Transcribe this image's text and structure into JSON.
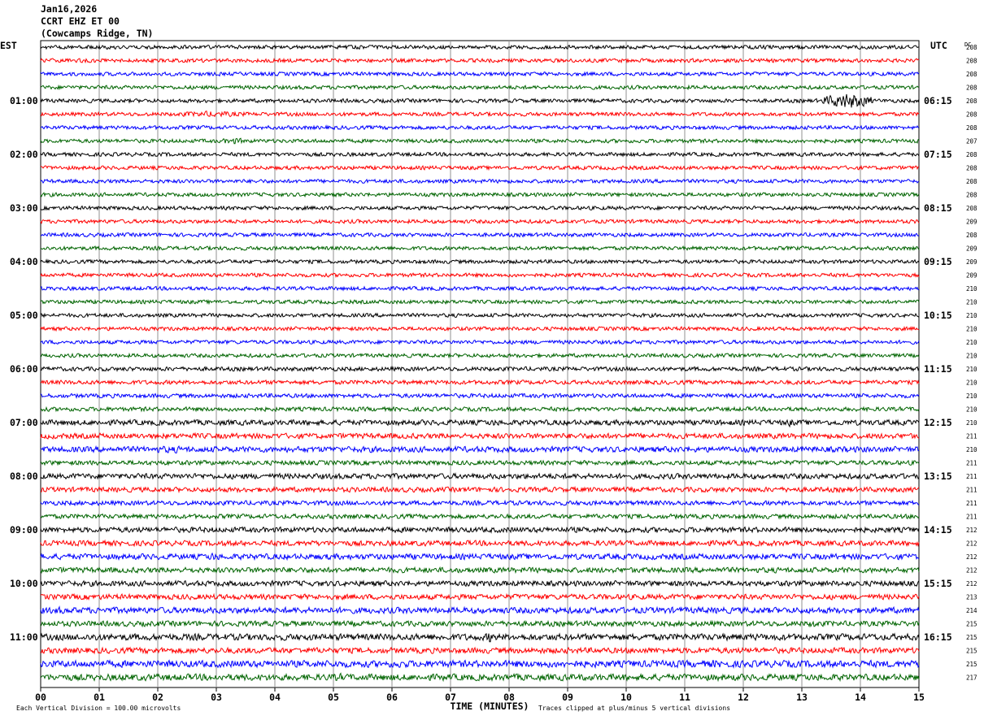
{
  "header": {
    "date": "Jan16,2026",
    "channel": "CCRT EHZ ET 00",
    "location": "(Cowcamps Ridge, TN)"
  },
  "footer": {
    "scale_note": "Each Vertical Division =  100.00 microvolts",
    "clip_note": "Traces clipped at plus/minus 5 vertical divisions"
  },
  "chart_data": {
    "type": "line",
    "title": "",
    "left_axis_label": "EST",
    "right_axis_label": "UTC",
    "dc_label": "DC",
    "xlabel": "TIME (MINUTES)",
    "xlim": [
      0,
      15
    ],
    "x_ticks": [
      "00",
      "01",
      "02",
      "03",
      "04",
      "05",
      "06",
      "07",
      "08",
      "09",
      "10",
      "11",
      "12",
      "13",
      "14",
      "15"
    ],
    "trace_colors": [
      "#000000",
      "#ff0000",
      "#0000ff",
      "#006400"
    ],
    "grid": true,
    "rows": [
      {
        "est": "",
        "utc": "",
        "dc": "208",
        "amp": 1.0
      },
      {
        "est": "",
        "utc": "",
        "dc": "208",
        "amp": 1.0
      },
      {
        "est": "",
        "utc": "",
        "dc": "208",
        "amp": 1.0
      },
      {
        "est": "",
        "utc": "",
        "dc": "208",
        "amp": 1.0
      },
      {
        "est": "01:00",
        "utc": "06:15",
        "dc": "208",
        "amp": 1.0,
        "events": [
          {
            "start": 13.35,
            "end": 14.2,
            "amp": 4.2
          }
        ]
      },
      {
        "est": "",
        "utc": "",
        "dc": "208",
        "amp": 1.0,
        "events": [
          {
            "start": 2.0,
            "end": 3.8,
            "amp": 1.6
          }
        ]
      },
      {
        "est": "",
        "utc": "",
        "dc": "208",
        "amp": 1.0
      },
      {
        "est": "",
        "utc": "",
        "dc": "207",
        "amp": 1.0,
        "events": [
          {
            "start": 3.0,
            "end": 3.6,
            "amp": 1.7
          }
        ]
      },
      {
        "est": "02:00",
        "utc": "07:15",
        "dc": "208",
        "amp": 1.0
      },
      {
        "est": "",
        "utc": "",
        "dc": "208",
        "amp": 1.0
      },
      {
        "est": "",
        "utc": "",
        "dc": "208",
        "amp": 1.0
      },
      {
        "est": "",
        "utc": "",
        "dc": "208",
        "amp": 1.0
      },
      {
        "est": "03:00",
        "utc": "08:15",
        "dc": "208",
        "amp": 1.0
      },
      {
        "est": "",
        "utc": "",
        "dc": "209",
        "amp": 1.0
      },
      {
        "est": "",
        "utc": "",
        "dc": "208",
        "amp": 1.0
      },
      {
        "est": "",
        "utc": "",
        "dc": "209",
        "amp": 1.0
      },
      {
        "est": "04:00",
        "utc": "09:15",
        "dc": "209",
        "amp": 1.0
      },
      {
        "est": "",
        "utc": "",
        "dc": "209",
        "amp": 1.0
      },
      {
        "est": "",
        "utc": "",
        "dc": "210",
        "amp": 1.0
      },
      {
        "est": "",
        "utc": "",
        "dc": "210",
        "amp": 1.0
      },
      {
        "est": "05:00",
        "utc": "10:15",
        "dc": "210",
        "amp": 1.0
      },
      {
        "est": "",
        "utc": "",
        "dc": "210",
        "amp": 1.0
      },
      {
        "est": "",
        "utc": "",
        "dc": "210",
        "amp": 1.0
      },
      {
        "est": "",
        "utc": "",
        "dc": "210",
        "amp": 1.0
      },
      {
        "est": "06:00",
        "utc": "11:15",
        "dc": "210",
        "amp": 1.1
      },
      {
        "est": "",
        "utc": "",
        "dc": "210",
        "amp": 1.1
      },
      {
        "est": "",
        "utc": "",
        "dc": "210",
        "amp": 1.1
      },
      {
        "est": "",
        "utc": "",
        "dc": "210",
        "amp": 1.1
      },
      {
        "est": "07:00",
        "utc": "12:15",
        "dc": "210",
        "amp": 1.4,
        "events": [
          {
            "start": 7.7,
            "end": 7.8,
            "amp": 2.4
          },
          {
            "start": 12.7,
            "end": 12.9,
            "amp": 2.2
          }
        ]
      },
      {
        "est": "",
        "utc": "",
        "dc": "211",
        "amp": 1.4
      },
      {
        "est": "",
        "utc": "",
        "dc": "210",
        "amp": 1.5,
        "events": [
          {
            "start": 1.2,
            "end": 3.2,
            "amp": 1.9
          }
        ]
      },
      {
        "est": "",
        "utc": "",
        "dc": "211",
        "amp": 1.2
      },
      {
        "est": "08:00",
        "utc": "13:15",
        "dc": "211",
        "amp": 1.4
      },
      {
        "est": "",
        "utc": "",
        "dc": "211",
        "amp": 1.3
      },
      {
        "est": "",
        "utc": "",
        "dc": "211",
        "amp": 1.2
      },
      {
        "est": "",
        "utc": "",
        "dc": "211",
        "amp": 1.2
      },
      {
        "est": "09:00",
        "utc": "14:15",
        "dc": "212",
        "amp": 1.4
      },
      {
        "est": "",
        "utc": "",
        "dc": "212",
        "amp": 1.4
      },
      {
        "est": "",
        "utc": "",
        "dc": "212",
        "amp": 1.5,
        "events": [
          {
            "start": 2.8,
            "end": 3.1,
            "amp": 2.3
          },
          {
            "start": 13.65,
            "end": 13.75,
            "amp": 2.2
          }
        ]
      },
      {
        "est": "",
        "utc": "",
        "dc": "212",
        "amp": 1.4
      },
      {
        "est": "10:00",
        "utc": "15:15",
        "dc": "212",
        "amp": 1.4
      },
      {
        "est": "",
        "utc": "",
        "dc": "213",
        "amp": 1.4
      },
      {
        "est": "",
        "utc": "",
        "dc": "214",
        "amp": 1.6,
        "events": [
          {
            "start": 0.0,
            "end": 0.6,
            "amp": 2.0
          }
        ]
      },
      {
        "est": "",
        "utc": "",
        "dc": "215",
        "amp": 1.4,
        "events": [
          {
            "start": 13.1,
            "end": 13.3,
            "amp": 2.3
          }
        ]
      },
      {
        "est": "11:00",
        "utc": "16:15",
        "dc": "215",
        "amp": 1.7,
        "events": [
          {
            "start": 7.6,
            "end": 7.75,
            "amp": 3.2
          },
          {
            "start": 0.8,
            "end": 1.1,
            "amp": 2.4
          }
        ]
      },
      {
        "est": "",
        "utc": "",
        "dc": "215",
        "amp": 1.5
      },
      {
        "est": "",
        "utc": "",
        "dc": "215",
        "amp": 1.8,
        "events": [
          {
            "start": 5.5,
            "end": 6.8,
            "amp": 2.1
          },
          {
            "start": 11.0,
            "end": 12.0,
            "amp": 2.1
          }
        ]
      },
      {
        "est": "",
        "utc": "",
        "dc": "217",
        "amp": 1.7,
        "events": [
          {
            "start": 4.8,
            "end": 5.4,
            "amp": 2.1
          }
        ]
      }
    ]
  }
}
